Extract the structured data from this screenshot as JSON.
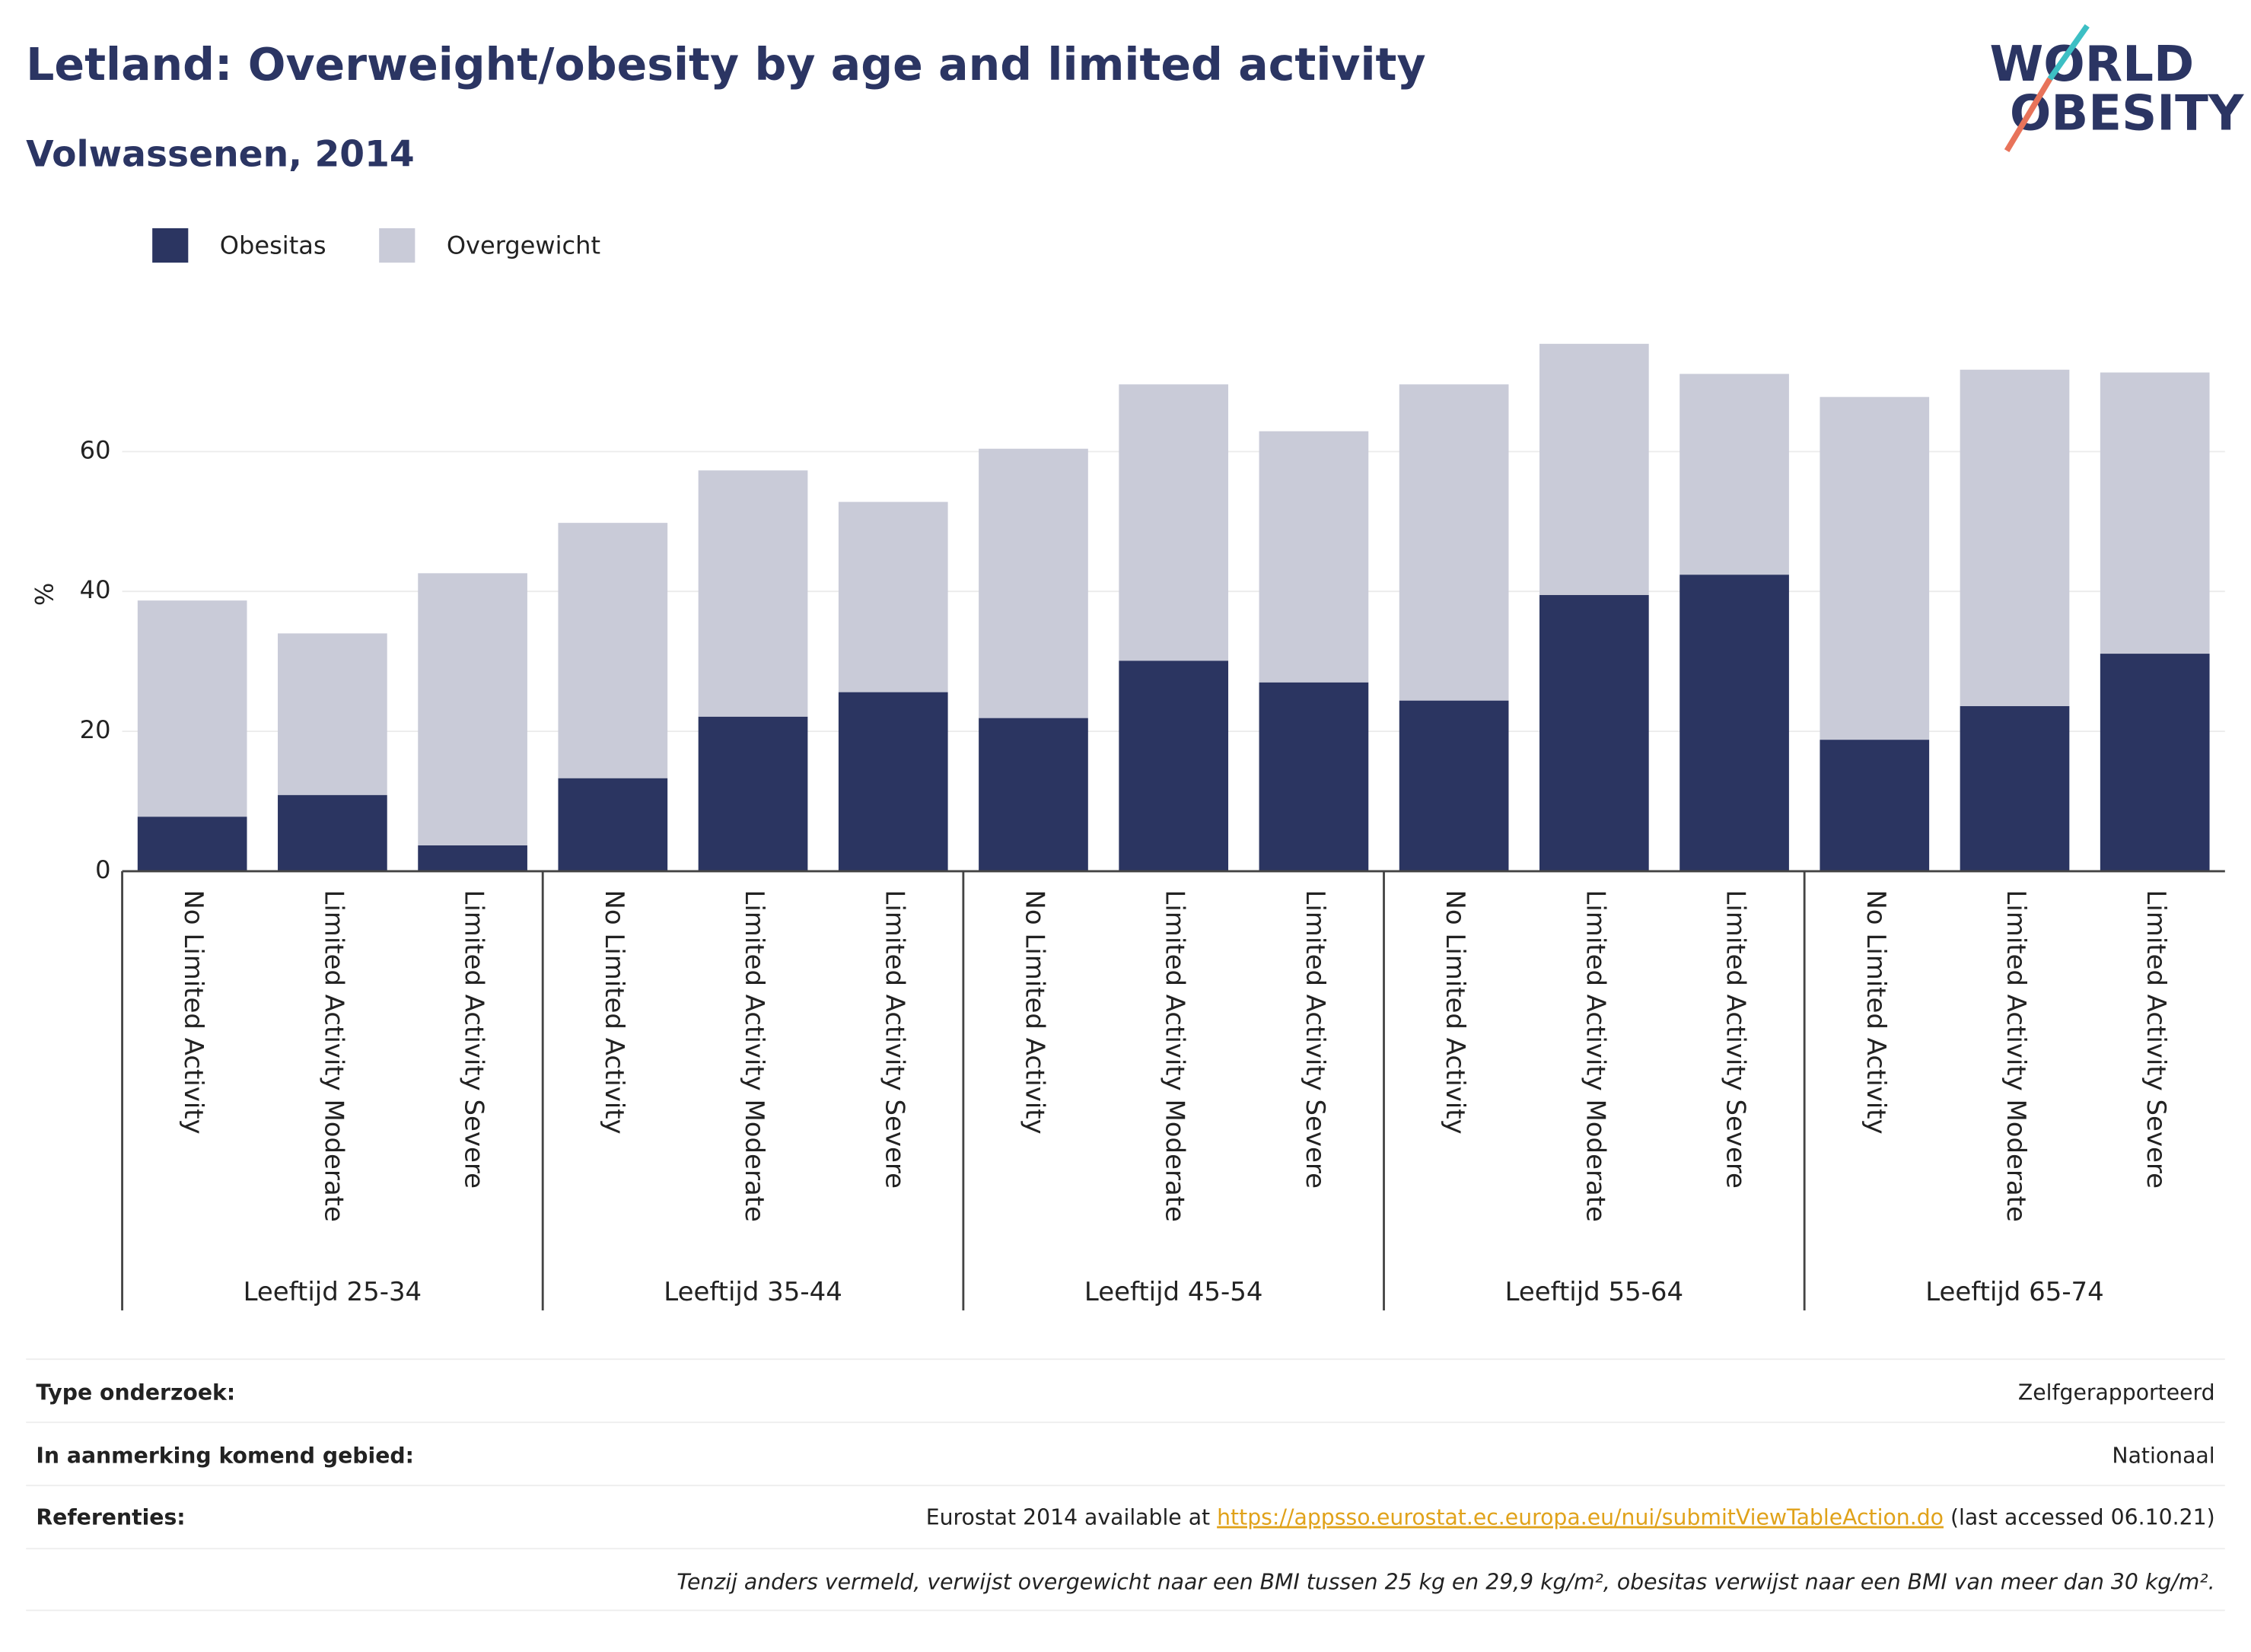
{
  "chart_data": {
    "type": "stacked_bar",
    "title": "Letland: Overweight/obesity by age and limited activity",
    "subtitle": "Volwassenen, 2014",
    "y_label": "%",
    "categories": [
      "No Limited Activity",
      "Limited Activity Moderate",
      "Limited Activity Severe",
      "No Limited Activity",
      "Limited Activity Moderate",
      "Limited Activity Severe",
      "No Limited Activity",
      "Limited Activity Moderate",
      "Limited Activity Severe",
      "No Limited Activity",
      "Limited Activity Moderate",
      "Limited Activity Severe",
      "No Limited Activity",
      "Limited Activity Moderate",
      "Limited Activity Severe"
    ],
    "groups": [
      "Leeftijd 25-34",
      "Leeftijd 35-44",
      "Leeftijd 45-54",
      "Leeftijd 55-64",
      "Leeftijd 65-74"
    ],
    "series": [
      {
        "name": "Obesitas",
        "color": "#2b3561",
        "values": [
          7.8,
          10.9,
          3.7,
          13.3,
          22.1,
          25.6,
          21.9,
          30.1,
          27.0,
          24.4,
          39.5,
          42.4,
          18.8,
          23.6,
          31.1
        ]
      },
      {
        "name": "Overgewicht",
        "color": "#c9cbd8",
        "values": [
          30.9,
          23.1,
          38.9,
          36.5,
          35.2,
          27.2,
          38.5,
          39.5,
          35.9,
          45.2,
          35.9,
          28.7,
          49.0,
          48.1,
          40.2
        ]
      }
    ],
    "ylim": [
      0,
      79
    ],
    "yticks": [
      0,
      20,
      40,
      60
    ],
    "grid": true,
    "legend": "top-left"
  },
  "logo": {
    "line1": "WORLD",
    "line2": "OBESITY"
  },
  "footer": {
    "rows": [
      {
        "label": "Type onderzoek:",
        "value": "Zelfgerapporteerd"
      },
      {
        "label": "In aanmerking komend gebied:",
        "value": "Nationaal"
      }
    ],
    "reference": {
      "label": "Referenties:",
      "prefix": "Eurostat 2014 available at ",
      "link": "https://appsso.eurostat.ec.europa.eu/nui/submitViewTableAction.do",
      "suffix": " (last accessed 06.10.21)"
    },
    "note": "Tenzij anders vermeld, verwijst overgewicht naar een BMI tussen 25 kg en 29,9 kg/m², obesitas verwijst naar een BMI van meer dan 30 kg/m²."
  }
}
